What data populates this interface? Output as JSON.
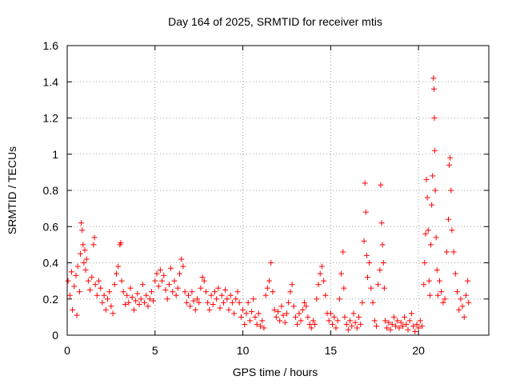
{
  "chart_data": {
    "type": "scatter",
    "title": "Day 164 of 2025, SRMTID for receiver mtis",
    "xlabel": "GPS time / hours",
    "ylabel": "SRMTID / TECUs",
    "xlim": [
      0,
      24
    ],
    "ylim": [
      0,
      1.6
    ],
    "xticks": [
      0,
      5,
      10,
      15,
      20
    ],
    "xtick_labels": [
      "0",
      "5",
      "10",
      "15",
      "20"
    ],
    "yticks": [
      0,
      0.2,
      0.4,
      0.6,
      0.8,
      1,
      1.2,
      1.4,
      1.6
    ],
    "ytick_labels": [
      "0",
      "0.2",
      "0.4",
      "0.6",
      "0.8",
      "1",
      "1.2",
      "1.4",
      "1.6"
    ],
    "grid": true,
    "marker": "+",
    "color": "#ff0000",
    "series": [
      {
        "name": "SRMTID",
        "points": [
          [
            0.05,
            0.3
          ],
          [
            0.15,
            0.22
          ],
          [
            0.25,
            0.35
          ],
          [
            0.3,
            0.14
          ],
          [
            0.4,
            0.27
          ],
          [
            0.5,
            0.33
          ],
          [
            0.55,
            0.11
          ],
          [
            0.6,
            0.38
          ],
          [
            0.7,
            0.24
          ],
          [
            0.75,
            0.45
          ],
          [
            0.8,
            0.62
          ],
          [
            0.85,
            0.58
          ],
          [
            0.9,
            0.5
          ],
          [
            0.95,
            0.4
          ],
          [
            1.0,
            0.47
          ],
          [
            1.05,
            0.36
          ],
          [
            1.1,
            0.42
          ],
          [
            1.2,
            0.3
          ],
          [
            1.3,
            0.25
          ],
          [
            1.4,
            0.32
          ],
          [
            1.5,
            0.5
          ],
          [
            1.55,
            0.54
          ],
          [
            1.6,
            0.28
          ],
          [
            1.7,
            0.22
          ],
          [
            1.8,
            0.3
          ],
          [
            1.9,
            0.26
          ],
          [
            2.0,
            0.18
          ],
          [
            2.1,
            0.22
          ],
          [
            2.2,
            0.14
          ],
          [
            2.3,
            0.2
          ],
          [
            2.4,
            0.24
          ],
          [
            2.5,
            0.16
          ],
          [
            2.6,
            0.12
          ],
          [
            2.7,
            0.28
          ],
          [
            2.8,
            0.34
          ],
          [
            2.9,
            0.38
          ],
          [
            3.0,
            0.5
          ],
          [
            3.05,
            0.51
          ],
          [
            3.1,
            0.3
          ],
          [
            3.2,
            0.24
          ],
          [
            3.3,
            0.17
          ],
          [
            3.4,
            0.22
          ],
          [
            3.5,
            0.18
          ],
          [
            3.6,
            0.26
          ],
          [
            3.7,
            0.21
          ],
          [
            3.8,
            0.14
          ],
          [
            3.9,
            0.19
          ],
          [
            4.0,
            0.23
          ],
          [
            4.1,
            0.17
          ],
          [
            4.2,
            0.2
          ],
          [
            4.3,
            0.28
          ],
          [
            4.4,
            0.18
          ],
          [
            4.5,
            0.22
          ],
          [
            4.6,
            0.16
          ],
          [
            4.7,
            0.2
          ],
          [
            4.8,
            0.24
          ],
          [
            4.9,
            0.19
          ],
          [
            5.0,
            0.3
          ],
          [
            5.1,
            0.34
          ],
          [
            5.2,
            0.27
          ],
          [
            5.3,
            0.36
          ],
          [
            5.4,
            0.3
          ],
          [
            5.5,
            0.33
          ],
          [
            5.6,
            0.25
          ],
          [
            5.7,
            0.2
          ],
          [
            5.8,
            0.28
          ],
          [
            5.9,
            0.37
          ],
          [
            6.0,
            0.24
          ],
          [
            6.1,
            0.3
          ],
          [
            6.2,
            0.22
          ],
          [
            6.3,
            0.26
          ],
          [
            6.4,
            0.34
          ],
          [
            6.5,
            0.42
          ],
          [
            6.6,
            0.38
          ],
          [
            6.7,
            0.24
          ],
          [
            6.8,
            0.18
          ],
          [
            6.9,
            0.22
          ],
          [
            7.0,
            0.16
          ],
          [
            7.1,
            0.24
          ],
          [
            7.2,
            0.19
          ],
          [
            7.3,
            0.14
          ],
          [
            7.4,
            0.2
          ],
          [
            7.5,
            0.18
          ],
          [
            7.6,
            0.26
          ],
          [
            7.7,
            0.32
          ],
          [
            7.8,
            0.3
          ],
          [
            7.9,
            0.24
          ],
          [
            8.0,
            0.18
          ],
          [
            8.1,
            0.14
          ],
          [
            8.2,
            0.22
          ],
          [
            8.3,
            0.17
          ],
          [
            8.4,
            0.24
          ],
          [
            8.5,
            0.2
          ],
          [
            8.6,
            0.26
          ],
          [
            8.7,
            0.15
          ],
          [
            8.8,
            0.22
          ],
          [
            8.9,
            0.18
          ],
          [
            9.0,
            0.25
          ],
          [
            9.1,
            0.2
          ],
          [
            9.2,
            0.14
          ],
          [
            9.3,
            0.22
          ],
          [
            9.4,
            0.18
          ],
          [
            9.5,
            0.12
          ],
          [
            9.6,
            0.2
          ],
          [
            9.7,
            0.24
          ],
          [
            9.8,
            0.18
          ],
          [
            9.9,
            0.1
          ],
          [
            10.0,
            0.14
          ],
          [
            10.1,
            0.06
          ],
          [
            10.2,
            0.12
          ],
          [
            10.3,
            0.18
          ],
          [
            10.4,
            0.08
          ],
          [
            10.5,
            0.13
          ],
          [
            10.6,
            0.2
          ],
          [
            10.7,
            0.1
          ],
          [
            10.8,
            0.06
          ],
          [
            10.9,
            0.12
          ],
          [
            11.0,
            0.05
          ],
          [
            11.1,
            0.08
          ],
          [
            11.2,
            0.04
          ],
          [
            11.3,
            0.22
          ],
          [
            11.4,
            0.26
          ],
          [
            11.5,
            0.3
          ],
          [
            11.6,
            0.4
          ],
          [
            11.7,
            0.24
          ],
          [
            11.8,
            0.14
          ],
          [
            11.9,
            0.1
          ],
          [
            12.0,
            0.13
          ],
          [
            12.1,
            0.08
          ],
          [
            12.2,
            0.16
          ],
          [
            12.3,
            0.11
          ],
          [
            12.4,
            0.07
          ],
          [
            12.5,
            0.12
          ],
          [
            12.6,
            0.18
          ],
          [
            12.7,
            0.24
          ],
          [
            12.8,
            0.28
          ],
          [
            12.9,
            0.16
          ],
          [
            13.0,
            0.1
          ],
          [
            13.1,
            0.06
          ],
          [
            13.2,
            0.12
          ],
          [
            13.3,
            0.08
          ],
          [
            13.4,
            0.14
          ],
          [
            13.5,
            0.18
          ],
          [
            13.6,
            0.16
          ],
          [
            13.7,
            0.1
          ],
          [
            13.8,
            0.06
          ],
          [
            13.9,
            0.04
          ],
          [
            14.0,
            0.08
          ],
          [
            14.1,
            0.06
          ],
          [
            14.2,
            0.2
          ],
          [
            14.3,
            0.28
          ],
          [
            14.4,
            0.34
          ],
          [
            14.5,
            0.38
          ],
          [
            14.6,
            0.3
          ],
          [
            14.7,
            0.22
          ],
          [
            14.8,
            0.12
          ],
          [
            14.9,
            0.08
          ],
          [
            15.0,
            0.12
          ],
          [
            15.1,
            0.06
          ],
          [
            15.2,
            0.1
          ],
          [
            15.3,
            0.04
          ],
          [
            15.4,
            0.08
          ],
          [
            15.5,
            0.2
          ],
          [
            15.6,
            0.34
          ],
          [
            15.7,
            0.46
          ],
          [
            15.75,
            0.26
          ],
          [
            15.8,
            0.1
          ],
          [
            15.9,
            0.06
          ],
          [
            16.0,
            0.03
          ],
          [
            16.1,
            0.08
          ],
          [
            16.2,
            0.05
          ],
          [
            16.3,
            0.12
          ],
          [
            16.4,
            0.07
          ],
          [
            16.5,
            0.04
          ],
          [
            16.6,
            0.1
          ],
          [
            16.7,
            0.06
          ],
          [
            16.8,
            0.18
          ],
          [
            16.9,
            0.52
          ],
          [
            16.95,
            0.84
          ],
          [
            17.0,
            0.68
          ],
          [
            17.05,
            0.44
          ],
          [
            17.1,
            0.32
          ],
          [
            17.2,
            0.4
          ],
          [
            17.3,
            0.26
          ],
          [
            17.4,
            0.18
          ],
          [
            17.5,
            0.08
          ],
          [
            17.6,
            0.05
          ],
          [
            17.7,
            0.28
          ],
          [
            17.8,
            0.36
          ],
          [
            17.85,
            0.83
          ],
          [
            17.9,
            0.62
          ],
          [
            17.95,
            0.5
          ],
          [
            18.0,
            0.4
          ],
          [
            18.05,
            0.26
          ],
          [
            18.1,
            0.08
          ],
          [
            18.2,
            0.04
          ],
          [
            18.3,
            0.07
          ],
          [
            18.4,
            0.03
          ],
          [
            18.5,
            0.06
          ],
          [
            18.6,
            0.1
          ],
          [
            18.7,
            0.05
          ],
          [
            18.8,
            0.08
          ],
          [
            18.9,
            0.04
          ],
          [
            19.0,
            0.07
          ],
          [
            19.1,
            0.05
          ],
          [
            19.2,
            0.1
          ],
          [
            19.3,
            0.06
          ],
          [
            19.4,
            0.03
          ],
          [
            19.5,
            0.08
          ],
          [
            19.6,
            0.12
          ],
          [
            19.7,
            0.05
          ],
          [
            19.8,
            0.02
          ],
          [
            19.9,
            0.06
          ],
          [
            20.0,
            0.04
          ],
          [
            20.1,
            0.08
          ],
          [
            20.2,
            0.05
          ],
          [
            20.3,
            0.28
          ],
          [
            20.35,
            0.4
          ],
          [
            20.4,
            0.56
          ],
          [
            20.45,
            0.86
          ],
          [
            20.5,
            0.76
          ],
          [
            20.55,
            0.58
          ],
          [
            20.6,
            0.3
          ],
          [
            20.65,
            0.22
          ],
          [
            20.7,
            0.5
          ],
          [
            20.75,
            0.72
          ],
          [
            20.8,
            0.88
          ],
          [
            20.85,
            1.42
          ],
          [
            20.88,
            1.36
          ],
          [
            20.9,
            1.2
          ],
          [
            20.92,
            1.02
          ],
          [
            20.95,
            0.8
          ],
          [
            21.0,
            0.54
          ],
          [
            21.05,
            0.36
          ],
          [
            21.1,
            0.22
          ],
          [
            21.2,
            0.3
          ],
          [
            21.3,
            0.24
          ],
          [
            21.4,
            0.18
          ],
          [
            21.5,
            0.2
          ],
          [
            21.6,
            0.46
          ],
          [
            21.7,
            0.64
          ],
          [
            21.75,
            0.94
          ],
          [
            21.8,
            0.98
          ],
          [
            21.85,
            0.8
          ],
          [
            21.9,
            0.58
          ],
          [
            22.0,
            0.46
          ],
          [
            22.1,
            0.34
          ],
          [
            22.2,
            0.24
          ],
          [
            22.3,
            0.14
          ],
          [
            22.4,
            0.2
          ],
          [
            22.5,
            0.16
          ],
          [
            22.6,
            0.1
          ],
          [
            22.7,
            0.22
          ],
          [
            22.8,
            0.3
          ],
          [
            22.85,
            0.18
          ]
        ]
      }
    ]
  }
}
